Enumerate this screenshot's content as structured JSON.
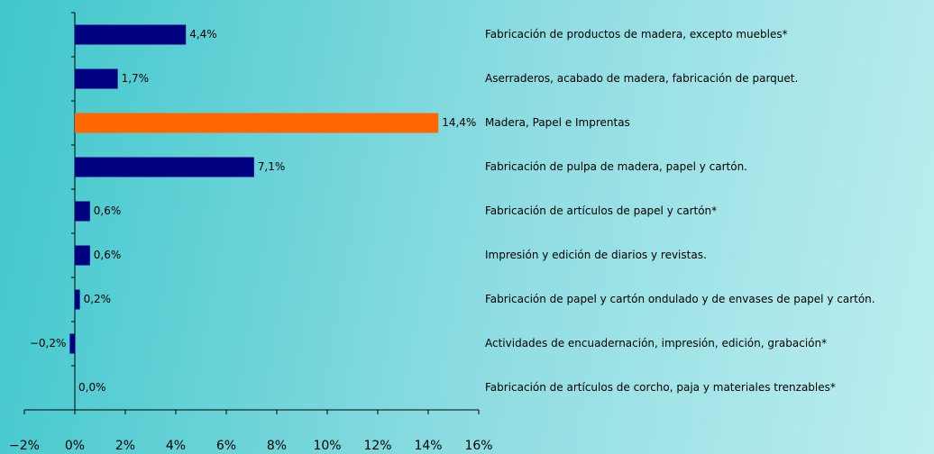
{
  "chart_data": {
    "type": "hbar",
    "categories": [
      "Fabricación de productos de madera, excepto muebles*",
      "Aserraderos, acabado de madera, fabricación de parquet.",
      "Madera, Papel e Imprentas",
      "Fabricación de pulpa de madera, papel y cartón.",
      "Fabricación de artículos de papel y cartón*",
      "Impresión y edición de diarios y revistas.",
      "Fabricación de papel y cartón ondulado y de envases de papel y cartón.",
      "Actividades de encuadernación, impresión, edición, grabación*",
      "Fabricación de artículos de corcho, paja y materiales trenzables*"
    ],
    "values": [
      4.4,
      1.7,
      14.4,
      7.1,
      0.6,
      0.6,
      0.2,
      -0.2,
      0.0
    ],
    "value_labels": [
      "4,4%",
      "1,7%",
      "14,4%",
      "7,1%",
      "0,6%",
      "0,6%",
      "0,2%",
      "−0,2%",
      "0,0%"
    ],
    "colors": [
      "#000080",
      "#000080",
      "#ff6600",
      "#000080",
      "#000080",
      "#000080",
      "#000080",
      "#000080",
      "#000080"
    ],
    "xlim": [
      -2,
      16
    ],
    "xticks": [
      {
        "value": -2,
        "label": "−2%"
      },
      {
        "value": 0,
        "label": "0%"
      },
      {
        "value": 2,
        "label": "2%"
      },
      {
        "value": 4,
        "label": "4%"
      },
      {
        "value": 6,
        "label": "6%"
      },
      {
        "value": 8,
        "label": "8%"
      },
      {
        "value": 10,
        "label": "10%"
      },
      {
        "value": 12,
        "label": "12%"
      },
      {
        "value": 14,
        "label": "14%"
      },
      {
        "value": 16,
        "label": "16%"
      }
    ]
  }
}
